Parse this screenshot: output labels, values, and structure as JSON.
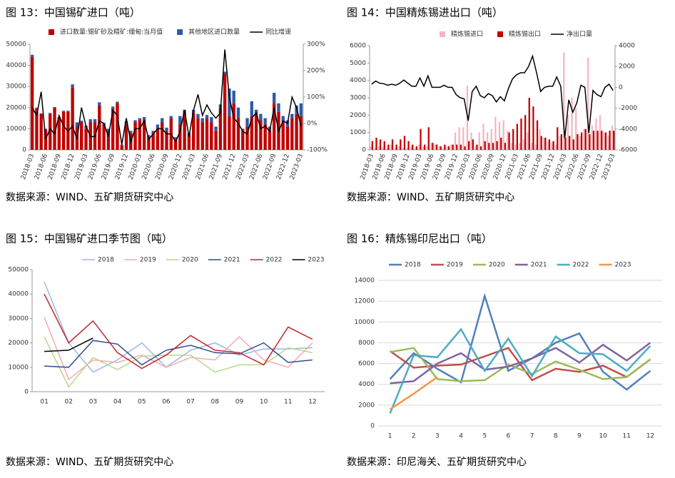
{
  "chart_data": [
    {
      "type": "bar",
      "stacked": true,
      "title": "图 13：中国锡矿进口（吨）",
      "source": "数据来源：WIND、五矿期货研究中心",
      "grid": false,
      "categories": [
        "2018-03",
        null,
        null,
        "2018-06",
        null,
        null,
        "2018-09",
        null,
        null,
        "2018-12",
        null,
        null,
        "2019-03",
        null,
        null,
        "2019-06",
        null,
        null,
        "2019-09",
        null,
        null,
        "2019-12",
        null,
        null,
        "2020-03",
        null,
        null,
        "2020-06",
        null,
        null,
        "2020-09",
        null,
        null,
        "2020-12",
        null,
        null,
        "2021-03",
        null,
        null,
        "2021-06",
        null,
        null,
        "2021-09",
        null,
        null,
        "2021-12",
        null,
        null,
        "2022-03",
        null,
        null,
        "2022-06",
        null,
        null,
        "2022-09",
        null,
        null,
        "2022-12",
        null,
        null,
        "2023-03"
      ],
      "ylim": [
        0,
        50000
      ],
      "yticks": [
        0,
        10000,
        20000,
        30000,
        40000,
        50000
      ],
      "y2lim": [
        -100,
        300
      ],
      "y2ticks": [
        {
          "value": -100,
          "label": "-100%"
        },
        {
          "value": 0,
          "label": "0%"
        },
        {
          "value": 100,
          "label": "100%"
        },
        {
          "value": 200,
          "label": "200%"
        },
        {
          "value": 300,
          "label": "300%"
        }
      ],
      "series": [
        {
          "name": "进口数量:锡矿砂及精矿:缅甸:当月值",
          "color": "#c00000",
          "values": [
            44000,
            19500,
            17000,
            9500,
            17000,
            20000,
            15000,
            18000,
            18000,
            29500,
            11000,
            13000,
            10000,
            13000,
            13000,
            21000,
            12000,
            9000,
            19500,
            22000,
            2000,
            12000,
            8000,
            13000,
            14000,
            14000,
            6000,
            8000,
            10000,
            13000,
            9000,
            15000,
            5000,
            12000,
            17500,
            7000,
            17500,
            15000,
            13000,
            15000,
            13000,
            9000,
            19500,
            36000,
            16000,
            22000,
            15000,
            9000,
            11000,
            16000,
            17000,
            14000,
            12000,
            9000,
            22000,
            18000,
            13000,
            11000,
            15000,
            17000,
            16000
          ]
        },
        {
          "name": "其他地区进口数量",
          "color": "#2e5ba8",
          "values": [
            1000,
            500,
            300,
            500,
            500,
            300,
            500,
            500,
            500,
            1500,
            2000,
            800,
            1500,
            1500,
            1500,
            1500,
            800,
            1000,
            1000,
            800,
            500,
            1500,
            1000,
            1000,
            1000,
            1500,
            1000,
            1000,
            2000,
            2000,
            1500,
            1000,
            1000,
            4000,
            1500,
            1000,
            1500,
            2000,
            2000,
            1500,
            2500,
            2000,
            2000,
            1000,
            13000,
            6000,
            5000,
            1000,
            4000,
            7000,
            2000,
            3000,
            3000,
            2000,
            5000,
            4000,
            3000,
            3000,
            2000,
            4000,
            6000
          ]
        },
        {
          "name": "同比增速",
          "color": "#000000",
          "type": "line",
          "axis": "y2",
          "values": [
            60,
            30,
            120,
            -60,
            -20,
            -40,
            30,
            -10,
            -30,
            -10,
            -60,
            60,
            -10,
            -50,
            -50,
            10,
            0,
            -50,
            50,
            30,
            -80,
            20,
            -70,
            -20,
            -20,
            10,
            -60,
            -40,
            -20,
            -20,
            -40,
            -40,
            -70,
            -30,
            50,
            -50,
            50,
            110,
            30,
            70,
            40,
            20,
            40,
            280,
            100,
            20,
            0,
            -30,
            -40,
            20,
            40,
            -20,
            -10,
            -30,
            60,
            -30,
            10,
            0,
            100,
            60,
            -10
          ]
        }
      ]
    },
    {
      "type": "bar",
      "stacked": false,
      "title": "图 14：中国精炼锡进出口（吨）",
      "source": "数据来源：WIND、五矿期货研究中心",
      "grid": false,
      "categories": [
        "2018-03",
        null,
        null,
        "2018-06",
        null,
        null,
        "2018-09",
        null,
        null,
        "2018-12",
        null,
        null,
        "2019-03",
        null,
        null,
        "2019-06",
        null,
        null,
        "2019-09",
        null,
        null,
        "2019-12",
        null,
        null,
        "2020-03",
        null,
        null,
        "2020-06",
        null,
        null,
        "2020-09",
        null,
        null,
        "2020-12",
        null,
        null,
        "2021-03",
        null,
        null,
        "2021-06",
        null,
        null,
        "2021-09",
        null,
        null,
        "2021-12",
        null,
        null,
        "2022-03",
        null,
        null,
        "2022-06",
        null,
        null,
        "2022-09",
        null,
        null,
        "2022-12",
        null,
        null,
        "2023-03"
      ],
      "ylim": [
        0,
        6000
      ],
      "yticks": [
        0,
        1000,
        2000,
        3000,
        4000,
        5000,
        6000
      ],
      "y2lim": [
        -6000,
        4000
      ],
      "y2ticks": [
        -6000,
        -4000,
        -2000,
        0,
        2000,
        4000
      ],
      "series": [
        {
          "name": "精炼锡进口",
          "color": "#f4b6c2",
          "values": [
            200,
            100,
            200,
            150,
            100,
            300,
            100,
            200,
            100,
            100,
            200,
            100,
            300,
            200,
            200,
            400,
            300,
            200,
            100,
            200,
            300,
            1000,
            1300,
            1300,
            3700,
            1000,
            200,
            1000,
            1500,
            1000,
            1200,
            1900,
            1600,
            1700,
            1100,
            400,
            300,
            400,
            600,
            1000,
            400,
            300,
            1200,
            700,
            500,
            400,
            300,
            800,
            5600,
            2000,
            3000,
            2400,
            800,
            1200,
            5300,
            1400,
            1800,
            2000,
            1000,
            800,
            1400
          ]
        },
        {
          "name": "精炼锡出口",
          "color": "#c00000",
          "values": [
            500,
            700,
            600,
            500,
            300,
            600,
            300,
            600,
            800,
            500,
            300,
            200,
            1200,
            300,
            1300,
            400,
            300,
            200,
            300,
            200,
            300,
            300,
            300,
            200,
            500,
            600,
            300,
            200,
            500,
            400,
            400,
            500,
            700,
            400,
            1000,
            1200,
            1500,
            1800,
            2000,
            3000,
            2500,
            1700,
            800,
            700,
            600,
            500,
            1300,
            900,
            700,
            800,
            600,
            900,
            1000,
            1200,
            900,
            1100,
            1100,
            1100,
            1000,
            1100,
            1100
          ]
        },
        {
          "name": "净出口量",
          "color": "#000000",
          "type": "line",
          "axis": "y2",
          "values": [
            300,
            600,
            400,
            350,
            200,
            300,
            200,
            400,
            700,
            400,
            100,
            100,
            900,
            100,
            1100,
            0,
            0,
            0,
            200,
            0,
            0,
            -700,
            -1000,
            -1100,
            -3200,
            -400,
            100,
            -800,
            -1000,
            -600,
            -800,
            -1400,
            -900,
            -1300,
            -100,
            800,
            1200,
            1400,
            1400,
            2000,
            3000,
            1400,
            -400,
            0,
            100,
            100,
            1000,
            100,
            -4900,
            -1200,
            -2400,
            -1500,
            200,
            0,
            -4400,
            -300,
            -700,
            -900,
            0,
            300,
            -300
          ]
        }
      ]
    },
    {
      "type": "line",
      "title": "图 15：中国锡矿进口季节图（吨）",
      "source": "数据来源：WIND、五矿期货研究中心",
      "grid": false,
      "categories": [
        "01",
        "02",
        "03",
        "04",
        "05",
        "06",
        "07",
        "08",
        "09",
        "10",
        "11",
        "12"
      ],
      "ylim": [
        0,
        50000
      ],
      "yticks": [
        0,
        10000,
        20000,
        30000,
        40000,
        50000
      ],
      "series": [
        {
          "name": "2018",
          "color": "#9db8e0",
          "values": [
            45000,
            20000,
            8000,
            13000,
            20000,
            10000,
            17000,
            20000,
            15000,
            17500,
            17500,
            18000
          ]
        },
        {
          "name": "2019",
          "color": "#f4a9b0",
          "values": [
            30500,
            5000,
            13000,
            12000,
            15000,
            10000,
            14000,
            13000,
            22500,
            13000,
            10000,
            20000
          ]
        },
        {
          "name": "2020",
          "color": "#b7d98b",
          "values": [
            22500,
            2000,
            14000,
            9000,
            14500,
            15000,
            15000,
            8000,
            11000,
            11000,
            18000,
            16000
          ]
        },
        {
          "name": "2021",
          "color": "#2e4f8c",
          "values": [
            10500,
            10000,
            21000,
            19500,
            11000,
            17000,
            19000,
            16000,
            15500,
            20000,
            12000,
            13000
          ]
        },
        {
          "name": "2022",
          "color": "#c0262d",
          "values": [
            40000,
            20000,
            29000,
            16000,
            9500,
            15000,
            23000,
            17000,
            16000,
            11000,
            26500,
            21500
          ]
        },
        {
          "name": "2023",
          "color": "#000000",
          "values": [
            16500,
            17000,
            22000,
            null,
            null,
            null,
            null,
            null,
            null,
            null,
            null,
            null
          ]
        }
      ]
    },
    {
      "type": "line",
      "title": "图 16：精炼锡印尼出口（吨）",
      "source": "数据来源：印尼海关、五矿期货研究中心",
      "grid": true,
      "thick": true,
      "categories": [
        "1",
        "2",
        "3",
        "4",
        "5",
        "6",
        "7",
        "8",
        "9",
        "10",
        "11",
        "12"
      ],
      "ylim": [
        0,
        14000
      ],
      "yticks": [
        0,
        2000,
        4000,
        6000,
        8000,
        10000,
        12000,
        14000
      ],
      "series": [
        {
          "name": "2018",
          "color": "#4f81bd",
          "values": [
            4500,
            7000,
            5500,
            4200,
            12500,
            5300,
            6500,
            8000,
            8900,
            5200,
            3500,
            5300
          ]
        },
        {
          "name": "2019",
          "color": "#c0504d",
          "values": [
            7200,
            5600,
            5800,
            5900,
            6700,
            7500,
            4400,
            5500,
            5200,
            5800,
            4700,
            6400
          ]
        },
        {
          "name": "2020",
          "color": "#9bbb59",
          "values": [
            7100,
            7500,
            4500,
            4300,
            4400,
            5900,
            5000,
            6200,
            5400,
            4500,
            4700,
            6400
          ]
        },
        {
          "name": "2021",
          "color": "#8064a2",
          "values": [
            4100,
            4300,
            6000,
            7000,
            5400,
            5700,
            6500,
            7500,
            6100,
            7800,
            6300,
            8000
          ]
        },
        {
          "name": "2022",
          "color": "#4bacc6",
          "values": [
            1200,
            6800,
            6600,
            9300,
            5300,
            8400,
            4800,
            8600,
            7000,
            6900,
            5300,
            7700
          ]
        },
        {
          "name": "2023",
          "color": "#f79646",
          "values": [
            1600,
            3100,
            4700,
            null,
            null,
            null,
            null,
            null,
            null,
            null,
            null,
            null
          ]
        }
      ]
    }
  ]
}
